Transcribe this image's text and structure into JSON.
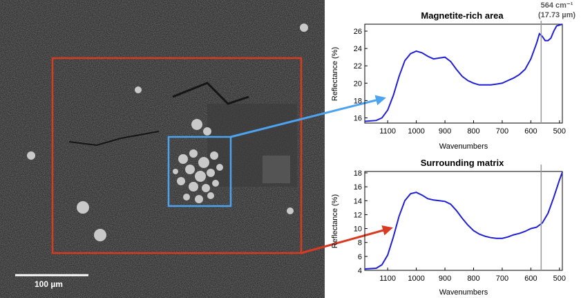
{
  "scale_bar": {
    "label": "100 µm"
  },
  "annotation": {
    "line1": "564 cm⁻¹",
    "line2": "(17.73 µm)",
    "x": 564
  },
  "colors": {
    "spectrum": "#1f1fd6",
    "outer_box": "#d83a22",
    "inner_box": "#4da3ee",
    "marker": "#999999"
  },
  "chart_data": [
    {
      "type": "line",
      "title": "Magnetite-rich area",
      "xlabel": "Wavenumbers",
      "ylabel": "Reflectance (%)",
      "xlim": [
        1180,
        490
      ],
      "ylim": [
        15.4,
        26.8
      ],
      "xticks": [
        1100,
        1000,
        900,
        800,
        700,
        600,
        500
      ],
      "yticks": [
        16,
        18,
        20,
        22,
        24,
        26
      ],
      "series": [
        {
          "x": [
            1180,
            1140,
            1120,
            1100,
            1080,
            1060,
            1040,
            1020,
            1000,
            980,
            960,
            940,
            920,
            900,
            880,
            860,
            840,
            820,
            800,
            780,
            760,
            740,
            720,
            700,
            680,
            660,
            640,
            620,
            600,
            580,
            570,
            560,
            550,
            540,
            530,
            520,
            510,
            500,
            490
          ],
          "y": [
            15.6,
            15.7,
            16.0,
            16.9,
            18.6,
            20.8,
            22.6,
            23.4,
            23.7,
            23.5,
            23.1,
            22.8,
            22.9,
            23.0,
            22.5,
            21.6,
            20.8,
            20.3,
            20.0,
            19.8,
            19.8,
            19.8,
            19.9,
            20.0,
            20.3,
            20.6,
            21.0,
            21.6,
            22.8,
            24.6,
            25.7,
            25.4,
            24.9,
            24.9,
            25.2,
            26.0,
            26.6,
            26.7,
            26.8
          ]
        }
      ]
    },
    {
      "type": "line",
      "title": "Surrounding matrix",
      "xlabel": "Wavenumbers",
      "ylabel": "Reflectance (%)",
      "xlim": [
        1180,
        490
      ],
      "ylim": [
        4,
        18.2
      ],
      "xticks": [
        1100,
        1000,
        900,
        800,
        700,
        600,
        500
      ],
      "yticks": [
        4,
        6,
        8,
        10,
        12,
        14,
        16,
        18
      ],
      "series": [
        {
          "x": [
            1180,
            1140,
            1120,
            1100,
            1080,
            1060,
            1040,
            1020,
            1000,
            980,
            960,
            940,
            920,
            900,
            880,
            860,
            840,
            820,
            800,
            780,
            760,
            740,
            720,
            700,
            680,
            660,
            640,
            620,
            600,
            580,
            560,
            540,
            520,
            500,
            490
          ],
          "y": [
            4.2,
            4.3,
            4.8,
            6.2,
            8.8,
            11.8,
            14.0,
            15.0,
            15.2,
            14.8,
            14.3,
            14.1,
            14.0,
            13.9,
            13.5,
            12.6,
            11.5,
            10.5,
            9.7,
            9.2,
            8.9,
            8.7,
            8.6,
            8.6,
            8.8,
            9.1,
            9.3,
            9.6,
            10.0,
            10.2,
            10.8,
            12.2,
            14.5,
            17.0,
            18.1
          ]
        }
      ]
    }
  ]
}
